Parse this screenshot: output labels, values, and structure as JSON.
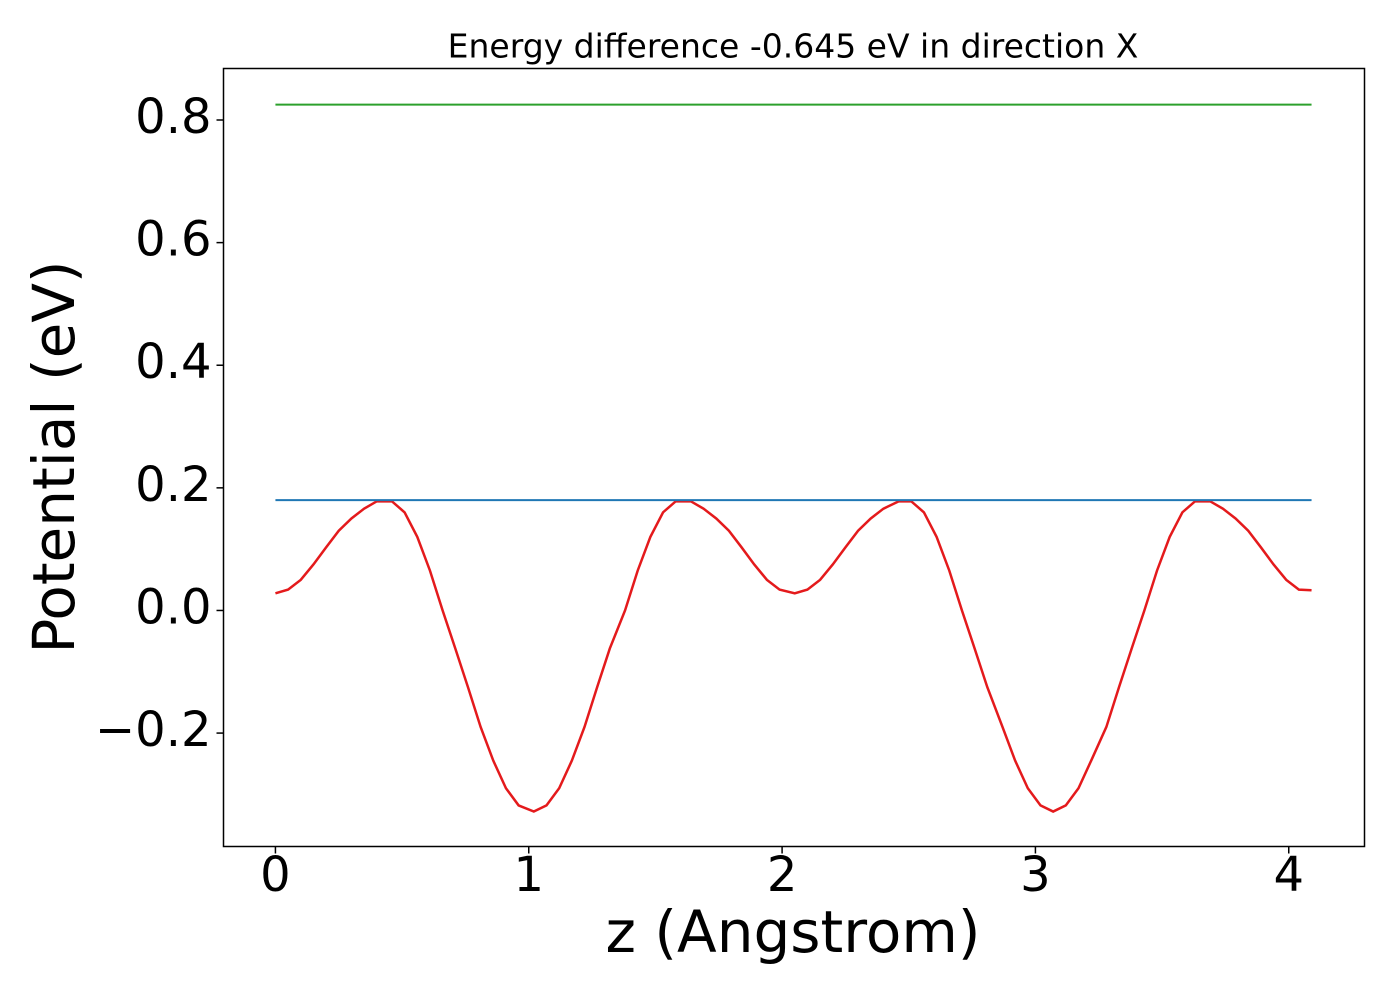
{
  "chart_data": {
    "type": "line",
    "title": "Energy difference -0.645 eV in direction X",
    "xlabel": "z (Angstrom)",
    "ylabel": "Potential (eV)",
    "xlim": [
      -0.205,
      4.299
    ],
    "ylim": [
      -0.385,
      0.884
    ],
    "xticks": [
      0,
      1,
      2,
      3,
      4
    ],
    "yticks": [
      {
        "value": -0.2,
        "label": "−0.2"
      },
      {
        "value": 0,
        "label": "0.0"
      },
      0.2,
      0.4,
      0.6,
      0.8
    ],
    "series": [
      {
        "color": "#e41a1c",
        "x": [
          0,
          0.05,
          0.1,
          0.15,
          0.2,
          0.25,
          0.3,
          0.35,
          0.4,
          0.46,
          0.51,
          0.56,
          0.61,
          0.66,
          0.71,
          0.76,
          0.81,
          0.86,
          0.91,
          0.96,
          1.02,
          1.07,
          1.12,
          1.17,
          1.22,
          1.27,
          1.32,
          1.38,
          1.43,
          1.48,
          1.53,
          1.58,
          1.64,
          1.69,
          1.74,
          1.79,
          1.84,
          1.89,
          1.94,
          1.99,
          2.05,
          2.1,
          2.15,
          2.2,
          2.25,
          2.3,
          2.35,
          2.4,
          2.46,
          2.51,
          2.56,
          2.61,
          2.66,
          2.71,
          2.76,
          2.81,
          2.87,
          2.92,
          2.97,
          3.02,
          3.07,
          3.12,
          3.17,
          3.22,
          3.28,
          3.33,
          3.38,
          3.43,
          3.48,
          3.53,
          3.58,
          3.63,
          3.69,
          3.74,
          3.79,
          3.84,
          3.89,
          3.94,
          3.99,
          4.04,
          4.09
        ],
        "values": [
          0.028,
          0.034,
          0.05,
          0.075,
          0.103,
          0.13,
          0.15,
          0.166,
          0.178,
          0.178,
          0.16,
          0.12,
          0.065,
          0.0,
          -0.062,
          -0.125,
          -0.19,
          -0.245,
          -0.29,
          -0.318,
          -0.328,
          -0.318,
          -0.29,
          -0.245,
          -0.19,
          -0.125,
          -0.062,
          0.0,
          0.065,
          0.12,
          0.16,
          0.178,
          0.178,
          0.166,
          0.15,
          0.13,
          0.103,
          0.075,
          0.05,
          0.034,
          0.028,
          0.034,
          0.05,
          0.075,
          0.103,
          0.13,
          0.15,
          0.166,
          0.178,
          0.178,
          0.16,
          0.12,
          0.065,
          0.0,
          -0.062,
          -0.125,
          -0.19,
          -0.245,
          -0.29,
          -0.318,
          -0.328,
          -0.318,
          -0.29,
          -0.245,
          -0.19,
          -0.125,
          -0.062,
          0.0,
          0.065,
          0.12,
          0.16,
          0.178,
          0.178,
          0.166,
          0.15,
          0.13,
          0.103,
          0.075,
          0.05,
          0.034,
          0.033
        ]
      },
      {
        "color": "#1f77b4",
        "x": [
          0,
          4.09
        ],
        "values": [
          0.18,
          0.18
        ]
      },
      {
        "color": "#2ca02c",
        "x": [
          0,
          4.09
        ],
        "values": [
          0.825,
          0.825
        ]
      }
    ]
  }
}
